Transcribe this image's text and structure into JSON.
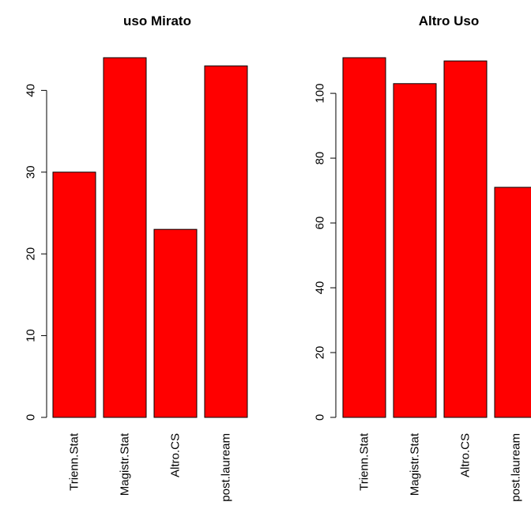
{
  "chart_data": [
    {
      "type": "bar",
      "title": "uso Mirato",
      "xlabel": "",
      "ylabel": "",
      "categories": [
        "Trienn.Stat",
        "Magistr.Stat",
        "Altro.CS",
        "post.lauream"
      ],
      "values": [
        30,
        44,
        23,
        43
      ],
      "ylim": [
        0,
        44
      ],
      "yticks": [
        0,
        10,
        20,
        30,
        40
      ],
      "bar_color": "#ff0000",
      "grid": false
    },
    {
      "type": "bar",
      "title": "Altro Uso",
      "xlabel": "",
      "ylabel": "",
      "categories": [
        "Trienn.Stat",
        "Magistr.Stat",
        "Altro.CS",
        "post.lauream"
      ],
      "values": [
        111,
        103,
        110,
        71
      ],
      "ylim": [
        0,
        111
      ],
      "yticks": [
        0,
        20,
        40,
        60,
        80,
        100
      ],
      "bar_color": "#ff0000",
      "grid": false
    }
  ]
}
